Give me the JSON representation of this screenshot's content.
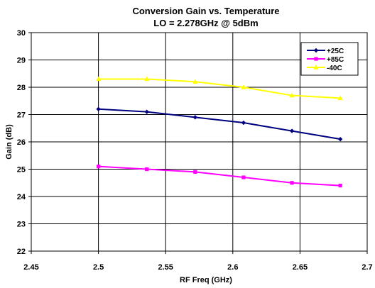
{
  "chart_data": {
    "type": "line",
    "title": "Conversion Gain vs. Temperature",
    "subtitle": "LO = 2.278GHz @ 5dBm",
    "xlabel": "RF Freq (GHz)",
    "ylabel": "Gain (dB)",
    "xlim": [
      2.45,
      2.7
    ],
    "ylim": [
      22,
      30
    ],
    "x_ticks": [
      "2.45",
      "2.5",
      "2.55",
      "2.6",
      "2.65",
      "2.7"
    ],
    "y_ticks": [
      "22",
      "23",
      "24",
      "25",
      "26",
      "27",
      "28",
      "29",
      "30"
    ],
    "grid": "horizontal and vertical",
    "legend_position": "top-right",
    "x": [
      2.5,
      2.536,
      2.572,
      2.608,
      2.644,
      2.68
    ],
    "series": [
      {
        "name": "+25C",
        "color": "#000080",
        "marker": "diamond",
        "values": [
          27.2,
          27.1,
          26.9,
          26.7,
          26.4,
          26.1
        ]
      },
      {
        "name": "+85C",
        "color": "#ff00ff",
        "marker": "square",
        "values": [
          25.1,
          25.0,
          24.9,
          24.7,
          24.5,
          24.4
        ]
      },
      {
        "name": "-40C",
        "color": "#ffff00",
        "marker": "triangle",
        "values": [
          28.3,
          28.3,
          28.2,
          28.0,
          27.7,
          27.6
        ]
      }
    ]
  }
}
